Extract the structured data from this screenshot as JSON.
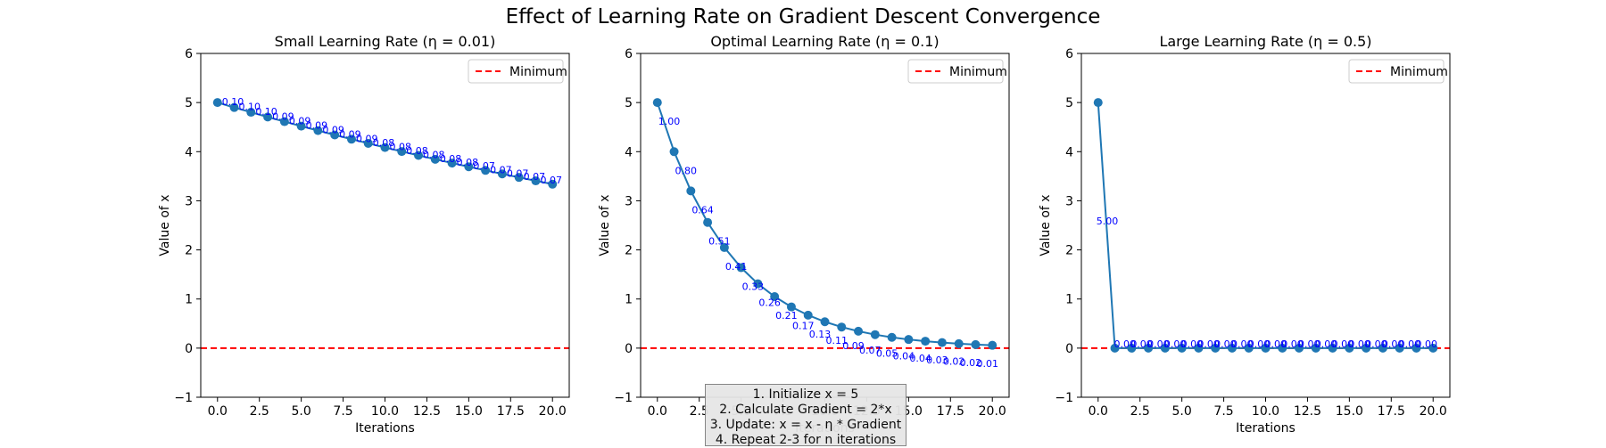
{
  "figure": {
    "title": "Effect of Learning Rate on Gradient Descent Convergence"
  },
  "algorithm_box": {
    "lines": [
      "1. Initialize x = 5",
      "2. Calculate Gradient = 2*x",
      "3. Update: x = x - η * Gradient",
      "4. Repeat 2-3 for n iterations"
    ]
  },
  "colors": {
    "line": "#1f77b4",
    "minimum": "#ff0000",
    "annotation": "#0000ff"
  },
  "chart_data": [
    {
      "type": "line",
      "title": "Small Learning Rate (η = 0.01)",
      "xlabel": "Iterations",
      "ylabel": "Value of x",
      "xlim": [
        -1,
        21
      ],
      "ylim": [
        -1,
        6
      ],
      "xticks": [
        "0.0",
        "2.5",
        "5.0",
        "7.5",
        "10.0",
        "12.5",
        "15.0",
        "17.5",
        "20.0"
      ],
      "yticks": [
        "−1",
        "0",
        "1",
        "2",
        "3",
        "4",
        "5",
        "6"
      ],
      "x": [
        0,
        1,
        2,
        3,
        4,
        5,
        6,
        7,
        8,
        9,
        10,
        11,
        12,
        13,
        14,
        15,
        16,
        17,
        18,
        19,
        20
      ],
      "values": [
        5.0,
        4.9,
        4.802,
        4.706,
        4.612,
        4.52,
        4.429,
        4.341,
        4.254,
        4.169,
        4.085,
        4.004,
        3.924,
        3.845,
        3.768,
        3.693,
        3.619,
        3.547,
        3.476,
        3.406,
        3.338
      ],
      "annotations": [
        "0.10",
        "0.10",
        "0.10",
        "0.09",
        "0.09",
        "0.09",
        "0.09",
        "0.09",
        "0.09",
        "0.08",
        "0.08",
        "0.08",
        "0.08",
        "0.08",
        "0.08",
        "0.07",
        "0.07",
        "0.07",
        "0.07",
        "0.07"
      ],
      "annotation_offset": "right",
      "reference_line": {
        "y": 0,
        "style": "dashed",
        "label": "Minimum"
      },
      "legend": {
        "position": "top-right",
        "entries": [
          "Minimum"
        ]
      }
    },
    {
      "type": "line",
      "title": "Optimal Learning Rate (η = 0.1)",
      "xlabel": "Iterations",
      "ylabel": "Value of x",
      "xlim": [
        -1,
        21
      ],
      "ylim": [
        -1,
        6
      ],
      "xticks": [
        "0.0",
        "2.5",
        "5.0",
        "7.5",
        "10.0",
        "12.5",
        "15.0",
        "17.5",
        "20.0"
      ],
      "yticks": [
        "−1",
        "0",
        "1",
        "2",
        "3",
        "4",
        "5",
        "6"
      ],
      "x": [
        0,
        1,
        2,
        3,
        4,
        5,
        6,
        7,
        8,
        9,
        10,
        11,
        12,
        13,
        14,
        15,
        16,
        17,
        18,
        19,
        20
      ],
      "values": [
        5.0,
        4.0,
        3.2,
        2.56,
        2.048,
        1.638,
        1.311,
        1.049,
        0.839,
        0.671,
        0.537,
        0.429,
        0.344,
        0.275,
        0.22,
        0.176,
        0.141,
        0.113,
        0.09,
        0.072,
        0.058
      ],
      "annotations": [
        "1.00",
        "0.80",
        "0.64",
        "0.51",
        "0.41",
        "0.33",
        "0.26",
        "0.21",
        "0.17",
        "0.13",
        "0.11",
        "0.09",
        "0.07",
        "0.05",
        "0.04",
        "0.04",
        "0.03",
        "0.02",
        "0.02",
        "0.01"
      ],
      "annotation_offset": "below",
      "reference_line": {
        "y": 0,
        "style": "dashed",
        "label": "Minimum"
      },
      "legend": {
        "position": "top-right",
        "entries": [
          "Minimum"
        ]
      }
    },
    {
      "type": "line",
      "title": "Large Learning Rate (η = 0.5)",
      "xlabel": "Iterations",
      "ylabel": "Value of x",
      "xlim": [
        -1,
        21
      ],
      "ylim": [
        -1,
        6
      ],
      "xticks": [
        "0.0",
        "2.5",
        "5.0",
        "7.5",
        "10.0",
        "12.5",
        "15.0",
        "17.5",
        "20.0"
      ],
      "yticks": [
        "−1",
        "0",
        "1",
        "2",
        "3",
        "4",
        "5",
        "6"
      ],
      "x": [
        0,
        1,
        2,
        3,
        4,
        5,
        6,
        7,
        8,
        9,
        10,
        11,
        12,
        13,
        14,
        15,
        16,
        17,
        18,
        19,
        20
      ],
      "values": [
        5,
        0,
        0,
        0,
        0,
        0,
        0,
        0,
        0,
        0,
        0,
        0,
        0,
        0,
        0,
        0,
        0,
        0,
        0,
        0,
        0
      ],
      "annotations": [
        "5.00",
        "0.00",
        "0.00",
        "0.00",
        "0.00",
        "0.00",
        "0.00",
        "0.00",
        "0.00",
        "0.00",
        "0.00",
        "0.00",
        "0.00",
        "0.00",
        "0.00",
        "0.00",
        "0.00",
        "0.00",
        "0.00",
        "0.00"
      ],
      "annotation_offset": "midpoint",
      "reference_line": {
        "y": 0,
        "style": "dashed",
        "label": "Minimum"
      },
      "legend": {
        "position": "top-right",
        "entries": [
          "Minimum"
        ]
      }
    }
  ]
}
